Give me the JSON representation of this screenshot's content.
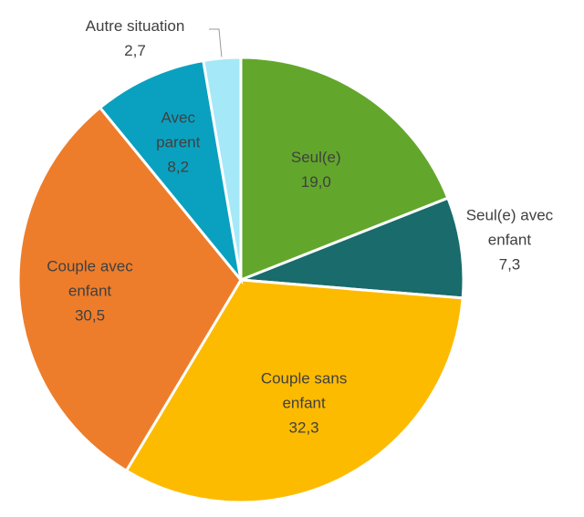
{
  "chart_data": {
    "type": "pie",
    "categories": [
      "Seul(e)",
      "Seul(e) avec enfant",
      "Couple sans enfant",
      "Couple avec enfant",
      "Avec parent",
      "Autre situation"
    ],
    "values": [
      19.0,
      7.3,
      32.3,
      30.5,
      8.2,
      2.7
    ],
    "value_labels": [
      "19,0",
      "7,3",
      "32,3",
      "30,5",
      "8,2",
      "2,7"
    ],
    "colors": [
      "#62a72b",
      "#1a6b6b",
      "#fdbb00",
      "#ee7d2b",
      "#0aa1c0",
      "#a5e8f8"
    ]
  }
}
